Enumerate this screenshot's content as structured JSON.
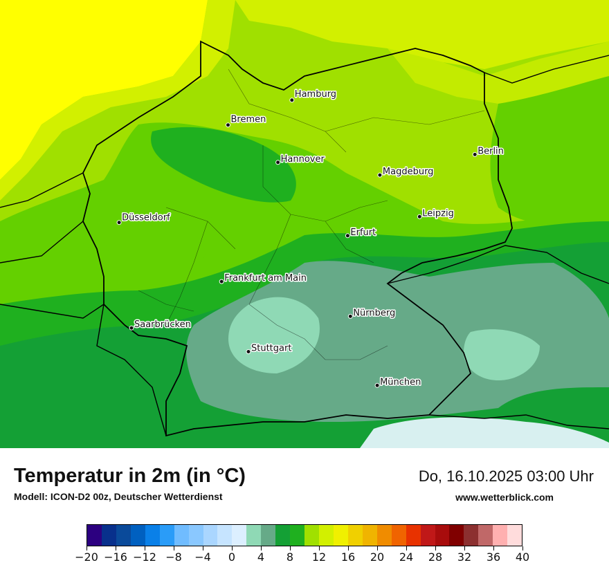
{
  "map": {
    "cities": [
      {
        "name": "Hamburg",
        "lon": 9.99,
        "lat": 53.55
      },
      {
        "name": "Bremen",
        "lon": 8.8,
        "lat": 53.08
      },
      {
        "name": "Berlin",
        "lon": 13.4,
        "lat": 52.52
      },
      {
        "name": "Hannover",
        "lon": 9.73,
        "lat": 52.37
      },
      {
        "name": "Magdeburg",
        "lon": 11.63,
        "lat": 52.13
      },
      {
        "name": "Düsseldorf",
        "lon": 6.77,
        "lat": 51.23
      },
      {
        "name": "Leipzig",
        "lon": 12.37,
        "lat": 51.34
      },
      {
        "name": "Erfurt",
        "lon": 11.03,
        "lat": 50.98
      },
      {
        "name": "Frankfurt am Main",
        "lon": 8.68,
        "lat": 50.11
      },
      {
        "name": "Nürnberg",
        "lon": 11.08,
        "lat": 49.45
      },
      {
        "name": "Saarbrücken",
        "lon": 7.0,
        "lat": 49.23
      },
      {
        "name": "Stuttgart",
        "lon": 9.18,
        "lat": 48.78
      },
      {
        "name": "München",
        "lon": 11.58,
        "lat": 48.14
      }
    ],
    "colors": {
      "sea": "#ffff00",
      "coast_warm": "#d2f000",
      "lowland": "#a0e000",
      "mid": "#64d000",
      "cooler": "#1fb01f",
      "cool": "#14a035",
      "cold": "#66aa88",
      "colder": "#8fd9b5",
      "coldest": "#d8f0f0",
      "border": "#000000"
    }
  },
  "footer": {
    "title": "Temperatur in 2m (in °C)",
    "subtitle": "Modell: ICON-D2 00z, Deutscher Wetterdienst",
    "datetime": "Do, 16.10.2025 03:00 Uhr",
    "website": "www.wetterblick.com"
  },
  "legend": {
    "ticks": [
      "−20",
      "−16",
      "−12",
      "−8",
      "−4",
      "0",
      "4",
      "8",
      "12",
      "16",
      "20",
      "24",
      "28",
      "32",
      "36",
      "40"
    ],
    "colors": [
      "#2c0080",
      "#08308c",
      "#0a4a9a",
      "#0060c0",
      "#0a80e8",
      "#2a9cf8",
      "#70bcff",
      "#8ac8ff",
      "#aad6ff",
      "#c6e4ff",
      "#dcefff",
      "#8fd9b5",
      "#66aa88",
      "#14a035",
      "#1fb01f",
      "#a0e000",
      "#d2f000",
      "#f0f000",
      "#f0d000",
      "#f0b400",
      "#f08c00",
      "#f06400",
      "#e83200",
      "#c01818",
      "#a80c0c",
      "#800000",
      "#8c3030",
      "#c06868",
      "#ffb0b0",
      "#ffdcdc"
    ]
  }
}
